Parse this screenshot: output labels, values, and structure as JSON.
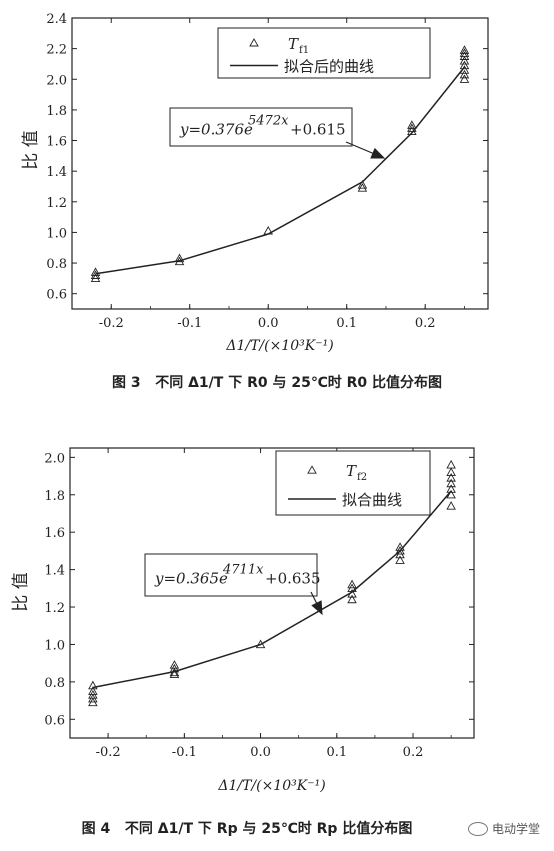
{
  "chart_data": [
    {
      "type": "scatter",
      "ylabel": "比 值",
      "xlabel": "Δ1/T/(×10³K⁻¹)",
      "xlim": [
        -0.25,
        0.28
      ],
      "ylim": [
        0.5,
        2.4
      ],
      "xticks": [
        -0.2,
        -0.1,
        0.0,
        0.1,
        0.2
      ],
      "yticks": [
        0.6,
        0.8,
        1.0,
        1.2,
        1.4,
        1.6,
        1.8,
        2.0,
        2.2,
        2.4
      ],
      "xtick_labels": [
        "-0.2",
        "-0.1",
        "0.0",
        "0.1",
        "0.2"
      ],
      "ytick_labels": [
        "0.6",
        "0.8",
        "1.0",
        "1.2",
        "1.4",
        "1.6",
        "1.8",
        "2.0",
        "2.2",
        "2.4"
      ],
      "legend": {
        "position": "top-right",
        "marker_label": "T",
        "marker_sub": "f1",
        "line_label": "拟合后的曲线"
      },
      "series": [
        {
          "name": "Tf1",
          "points": [
            {
              "x": -0.22,
              "y": 0.74
            },
            {
              "x": -0.22,
              "y": 0.72
            },
            {
              "x": -0.22,
              "y": 0.7
            },
            {
              "x": -0.113,
              "y": 0.83
            },
            {
              "x": -0.113,
              "y": 0.81
            },
            {
              "x": 0.0,
              "y": 1.01
            },
            {
              "x": 0.12,
              "y": 1.31
            },
            {
              "x": 0.12,
              "y": 1.29
            },
            {
              "x": 0.183,
              "y": 1.7
            },
            {
              "x": 0.183,
              "y": 1.68
            },
            {
              "x": 0.183,
              "y": 1.66
            },
            {
              "x": 0.25,
              "y": 2.19
            },
            {
              "x": 0.25,
              "y": 2.17
            },
            {
              "x": 0.25,
              "y": 2.15
            },
            {
              "x": 0.25,
              "y": 2.12
            },
            {
              "x": 0.25,
              "y": 2.09
            },
            {
              "x": 0.25,
              "y": 2.06
            },
            {
              "x": 0.25,
              "y": 2.03
            },
            {
              "x": 0.25,
              "y": 2.0
            }
          ]
        },
        {
          "name": "拟合后的曲线",
          "line": [
            {
              "x": -0.22,
              "y": 0.73
            },
            {
              "x": -0.113,
              "y": 0.815
            },
            {
              "x": 0.0,
              "y": 0.99
            },
            {
              "x": 0.12,
              "y": 1.33
            },
            {
              "x": 0.183,
              "y": 1.65
            },
            {
              "x": 0.25,
              "y": 2.08
            }
          ]
        }
      ],
      "annotation": {
        "text_main": "y=0.376e",
        "exponent": "5472x",
        "text_tail": "+0.615"
      }
    },
    {
      "type": "scatter",
      "ylabel": "比 值",
      "xlabel": "Δ1/T/(×10³K⁻¹)",
      "xlim": [
        -0.25,
        0.28
      ],
      "ylim": [
        0.5,
        2.05
      ],
      "xticks": [
        -0.2,
        -0.1,
        0.0,
        0.1,
        0.2
      ],
      "yticks": [
        0.6,
        0.8,
        1.0,
        1.2,
        1.4,
        1.6,
        1.8,
        2.0
      ],
      "xtick_labels": [
        "-0.2",
        "-0.1",
        "0.0",
        "0.1",
        "0.2"
      ],
      "ytick_labels": [
        "0.6",
        "0.8",
        "1.0",
        "1.2",
        "1.4",
        "1.6",
        "1.8",
        "2.0"
      ],
      "legend": {
        "position": "top-right",
        "marker_label": "T",
        "marker_sub": "f2",
        "line_label": "拟合曲线"
      },
      "series": [
        {
          "name": "Tf2",
          "points": [
            {
              "x": -0.22,
              "y": 0.78
            },
            {
              "x": -0.22,
              "y": 0.75
            },
            {
              "x": -0.22,
              "y": 0.73
            },
            {
              "x": -0.22,
              "y": 0.71
            },
            {
              "x": -0.22,
              "y": 0.69
            },
            {
              "x": -0.113,
              "y": 0.89
            },
            {
              "x": -0.113,
              "y": 0.87
            },
            {
              "x": -0.113,
              "y": 0.85
            },
            {
              "x": -0.113,
              "y": 0.84
            },
            {
              "x": 0.0,
              "y": 1.0
            },
            {
              "x": 0.12,
              "y": 1.32
            },
            {
              "x": 0.12,
              "y": 1.3
            },
            {
              "x": 0.12,
              "y": 1.27
            },
            {
              "x": 0.12,
              "y": 1.24
            },
            {
              "x": 0.183,
              "y": 1.52
            },
            {
              "x": 0.183,
              "y": 1.5
            },
            {
              "x": 0.183,
              "y": 1.48
            },
            {
              "x": 0.183,
              "y": 1.45
            },
            {
              "x": 0.25,
              "y": 1.96
            },
            {
              "x": 0.25,
              "y": 1.92
            },
            {
              "x": 0.25,
              "y": 1.89
            },
            {
              "x": 0.25,
              "y": 1.86
            },
            {
              "x": 0.25,
              "y": 1.83
            },
            {
              "x": 0.25,
              "y": 1.8
            },
            {
              "x": 0.25,
              "y": 1.74
            }
          ]
        },
        {
          "name": "拟合曲线",
          "line": [
            {
              "x": -0.22,
              "y": 0.77
            },
            {
              "x": -0.113,
              "y": 0.855
            },
            {
              "x": 0.0,
              "y": 1.0
            },
            {
              "x": 0.12,
              "y": 1.28
            },
            {
              "x": 0.183,
              "y": 1.5
            },
            {
              "x": 0.25,
              "y": 1.82
            }
          ]
        }
      ],
      "annotation": {
        "text_main": "y=0.365e",
        "exponent": "4711x",
        "text_tail": "+0.635"
      }
    }
  ],
  "captions": [
    {
      "fig": "图 3",
      "text": "不同 Δ1/T 下 R0 与 25℃时 R0 比值分布图"
    },
    {
      "fig": "图 4",
      "text": "不同 Δ1/T 下 Rp 与 25℃时 Rp 比值分布图"
    }
  ],
  "watermark": "电动学堂",
  "colors": {
    "ink": "#222222",
    "background": "#ffffff"
  }
}
